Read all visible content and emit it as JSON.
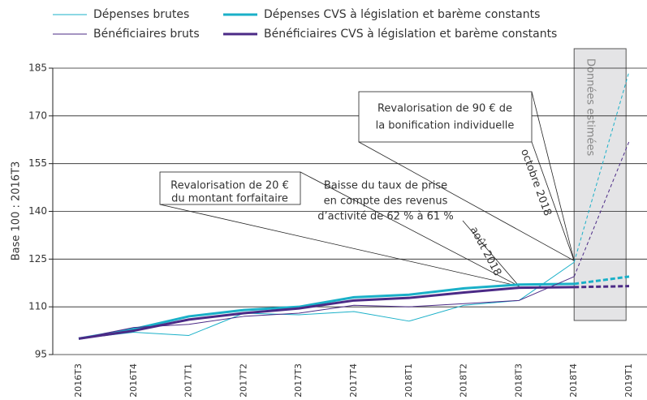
{
  "chart_data": {
    "type": "line",
    "y_label": "Base 100 : 2016T3",
    "categories": [
      "2016T3",
      "2016T4",
      "2017T1",
      "2017T2",
      "2017T3",
      "2017T4",
      "2018T1",
      "2018T2",
      "2018T3",
      "2018T4",
      "2019T1"
    ],
    "estimated_start": "2018T4",
    "estimated_label": "Données estimées",
    "series": [
      {
        "name": "Dépenses brutes",
        "color": "#1ab0c8",
        "width": 1,
        "values": [
          100,
          102,
          101,
          108,
          107.5,
          108.5,
          105.5,
          110.5,
          112,
          124,
          184
        ]
      },
      {
        "name": "Dépenses CVS à législation et barème constants",
        "color": "#1ab0c8",
        "width": 3,
        "values": [
          100,
          103,
          107,
          109,
          110,
          113,
          113.8,
          115.8,
          117,
          117.2,
          119.5
        ]
      },
      {
        "name": "Bénéficiaires bruts",
        "color": "#4b2a86",
        "width": 1,
        "values": [
          100,
          103.5,
          104.5,
          107,
          108,
          110.5,
          110,
          111,
          112,
          119.5,
          162
        ]
      },
      {
        "name": "Bénéficiaires CVS à législation et barème constants",
        "color": "#4b2a86",
        "width": 3,
        "values": [
          100,
          102.5,
          106,
          108,
          109.5,
          112,
          112.8,
          114.5,
          116,
          116.2,
          116.5
        ]
      }
    ],
    "ylim": [
      95,
      185
    ],
    "yticks": [
      95,
      110,
      125,
      140,
      155,
      170,
      185
    ],
    "grid": true,
    "annotations": [
      {
        "lines": [
          "Revalorisation de 20 €",
          "du montant forfaitaire"
        ]
      },
      {
        "lines": [
          "Baisse du taux de prise",
          "en compte des revenus",
          "d’activité de 62 % à 61 %"
        ]
      },
      {
        "lines": [
          "Revalorisation de 90 € de",
          "la bonification individuelle"
        ]
      }
    ],
    "date_labels": [
      "août 2018",
      "octobre 2018"
    ]
  }
}
